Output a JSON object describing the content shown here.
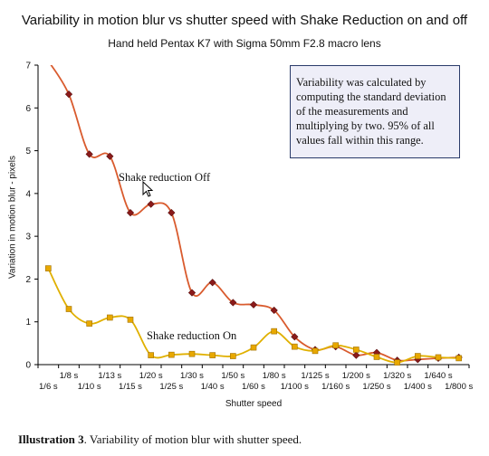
{
  "chart_data": {
    "type": "line",
    "title": "Variability in motion blur vs shutter speed with Shake Reduction on and off",
    "subtitle": "Hand held Pentax K7 with Sigma 50mm F2.8 macro lens",
    "xlabel": "Shutter speed",
    "ylabel": "Variation in motion blur - pixels",
    "ylim": [
      0,
      7
    ],
    "yticks": [
      "0",
      "1",
      "2",
      "3",
      "4",
      "5",
      "6",
      "7"
    ],
    "grid": false,
    "categories": [
      "1/6 s",
      "1/8 s",
      "1/10 s",
      "1/13 s",
      "1/15 s",
      "1/20 s",
      "1/25 s",
      "1/30 s",
      "1/40 s",
      "1/50 s",
      "1/60 s",
      "1/80 s",
      "1/100 s",
      "1/125 s",
      "1/160 s",
      "1/200 s",
      "1/250 s",
      "1/320 s",
      "1/400 s",
      "1/640 s",
      "1/800 s"
    ],
    "series": [
      {
        "name": "Shake reduction Off",
        "color": "#d95b2e",
        "marker_color": "#8b1a1a",
        "values": [
          7.1,
          6.32,
          4.92,
          4.87,
          3.55,
          3.75,
          3.55,
          1.68,
          1.92,
          1.45,
          1.4,
          1.27,
          0.65,
          0.35,
          0.42,
          0.22,
          0.28,
          0.1,
          0.12,
          0.15,
          0.17
        ]
      },
      {
        "name": "Shake reduction On",
        "color": "#e0b000",
        "marker_color": "#e8a800",
        "values": [
          2.25,
          1.3,
          0.96,
          1.1,
          1.05,
          0.22,
          0.23,
          0.25,
          0.22,
          0.2,
          0.4,
          0.78,
          0.42,
          0.32,
          0.45,
          0.35,
          0.18,
          0.05,
          0.2,
          0.17,
          0.15
        ]
      }
    ],
    "annotations": {
      "off_label": "Shake reduction Off",
      "on_label": "Shake reduction On",
      "note": "Variability was calculated by computing the standard deviation of the measurements and multiplying by two. 95% of all values fall within this range."
    },
    "caption_bold": "Illustration 3",
    "caption_rest": ". Variability of motion blur with shutter speed."
  }
}
